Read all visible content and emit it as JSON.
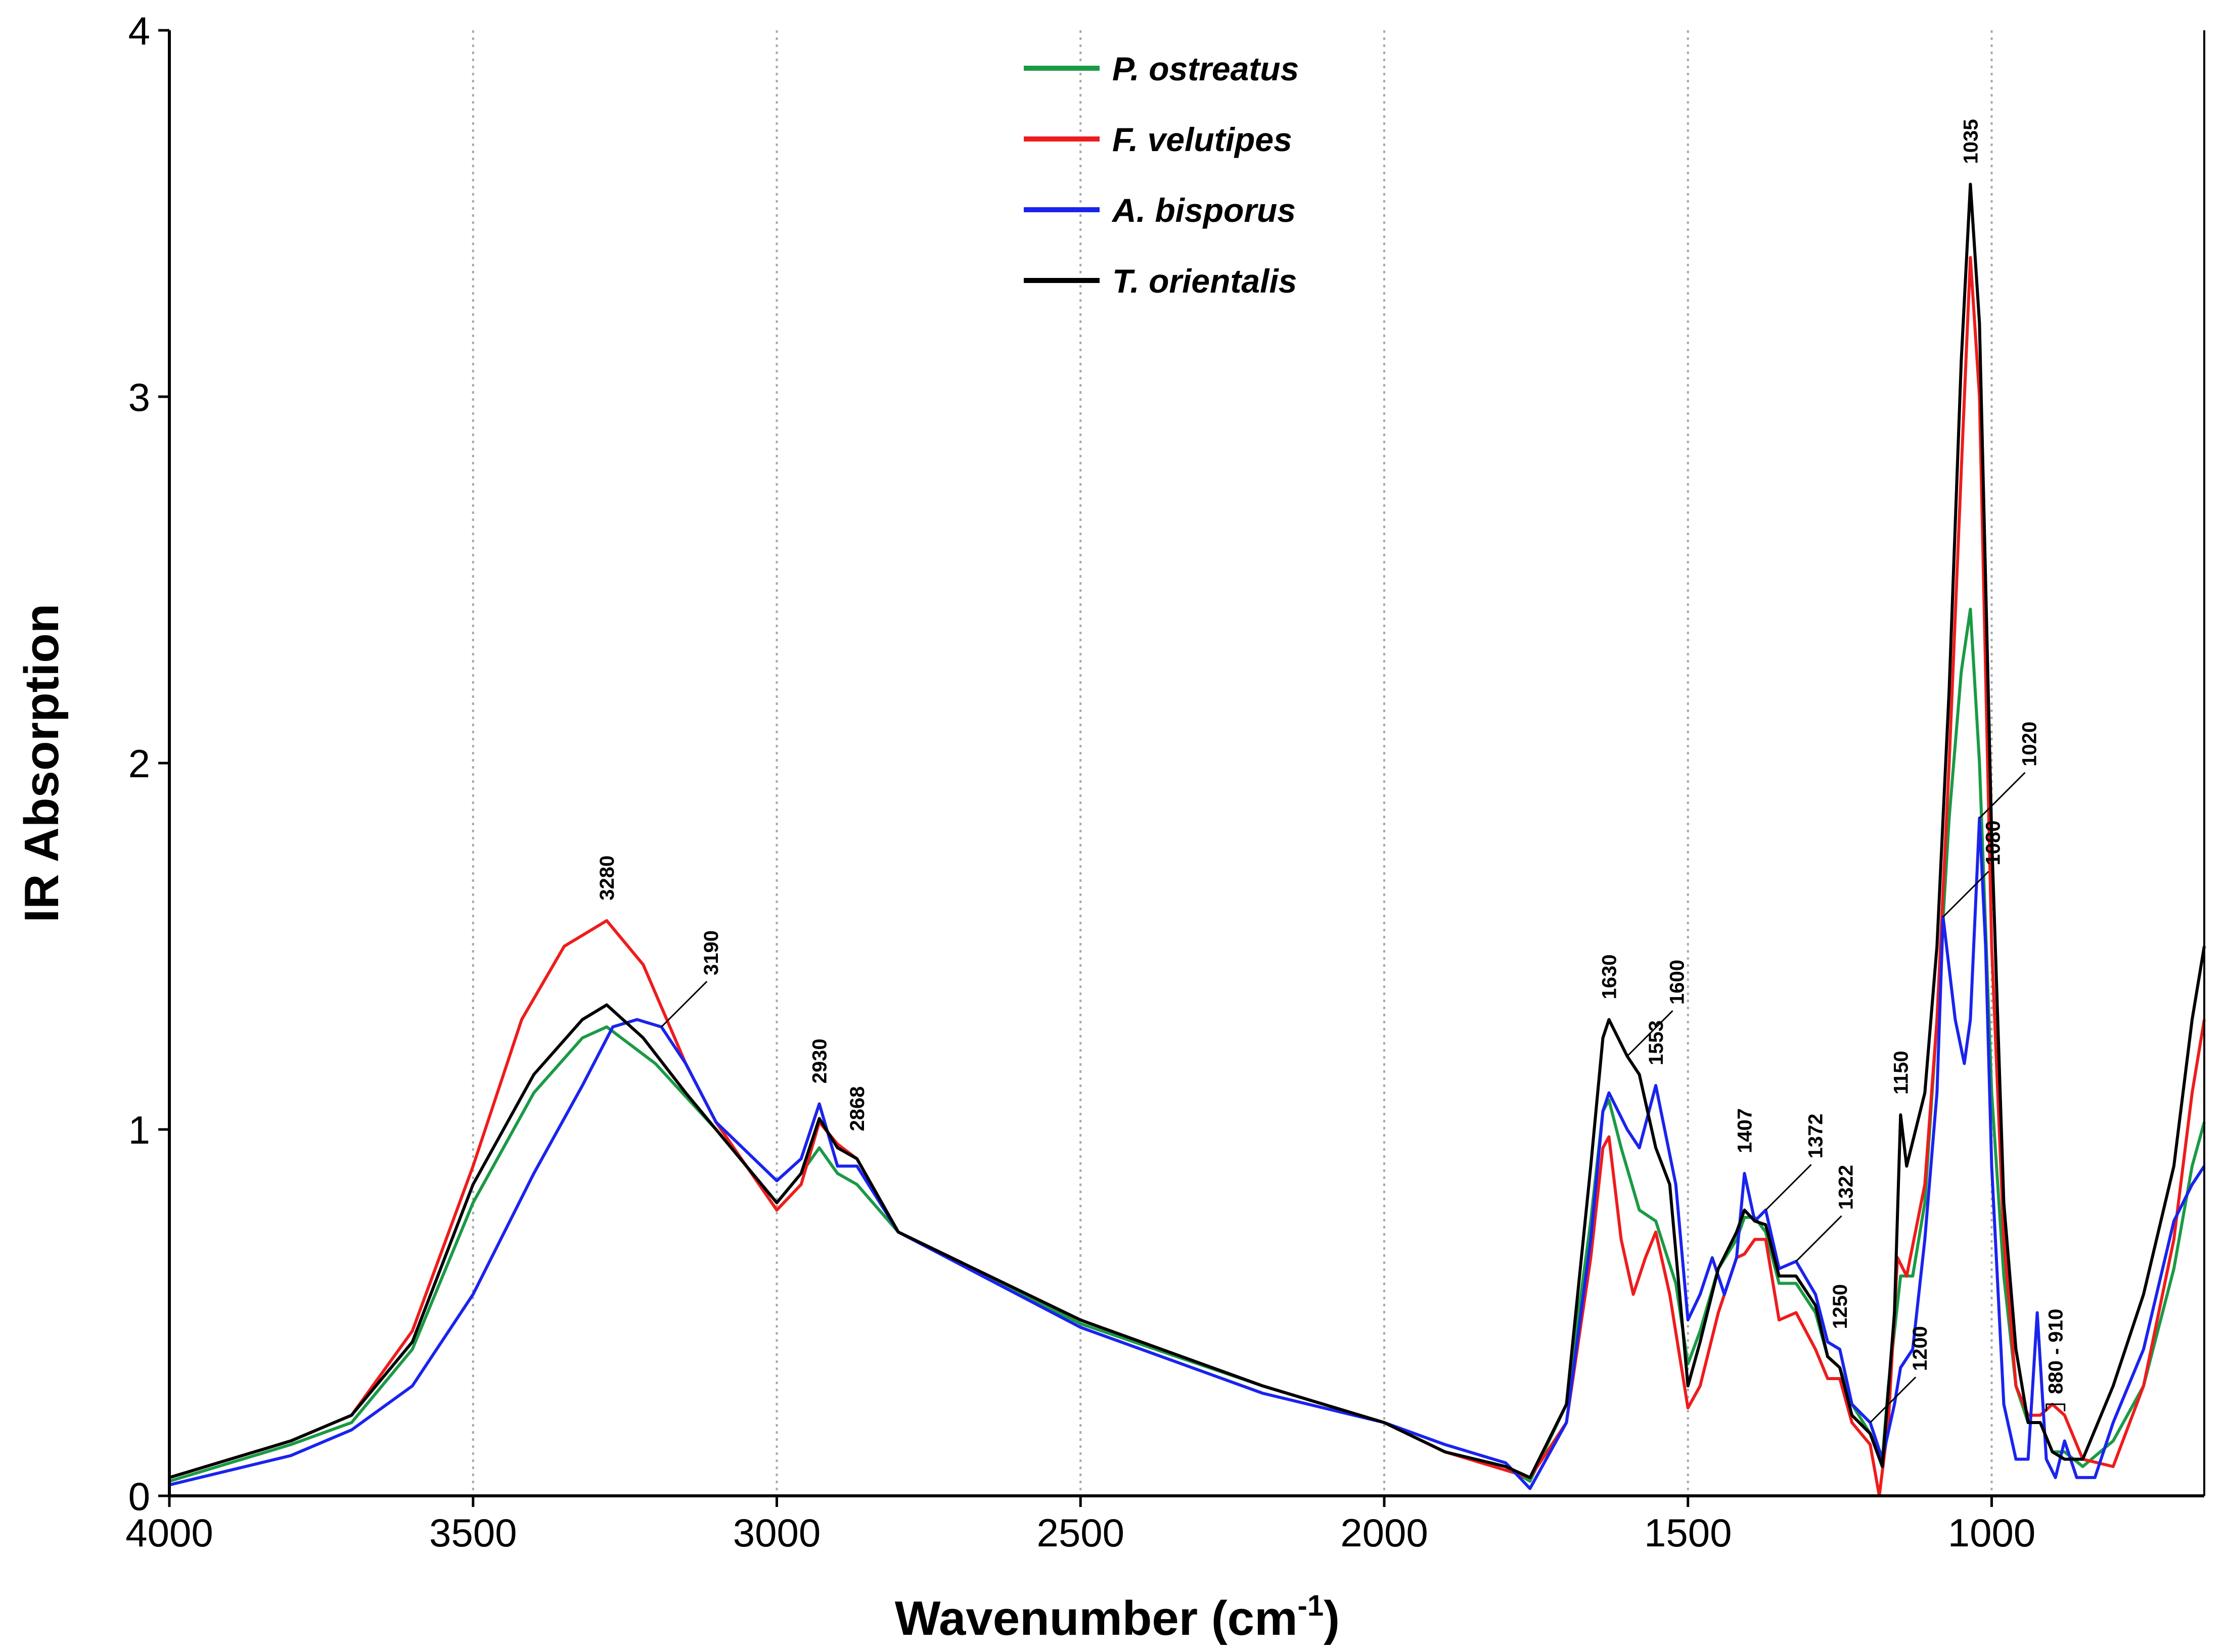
{
  "chart_data": {
    "type": "line",
    "xlabel": "Wavenumber (cm",
    "xlabel_sup": "-1",
    "xlabel_end": ")",
    "ylabel": "IR Absorption",
    "xlim": [
      4000,
      650
    ],
    "ylim": [
      0,
      4
    ],
    "x_ticks": [
      {
        "value": 4000,
        "label": "4000"
      },
      {
        "value": 3500,
        "label": "3500"
      },
      {
        "value": 3000,
        "label": "3000"
      },
      {
        "value": 2500,
        "label": "2500"
      },
      {
        "value": 2000,
        "label": "2000"
      },
      {
        "value": 1500,
        "label": "1500"
      },
      {
        "value": 1000,
        "label": "1000"
      }
    ],
    "y_ticks": [
      {
        "value": 0,
        "label": "0"
      },
      {
        "value": 1,
        "label": "1"
      },
      {
        "value": 2,
        "label": "2"
      },
      {
        "value": 3,
        "label": "3"
      },
      {
        "value": 4,
        "label": "4"
      }
    ],
    "vertical_gridlines": [
      3500,
      3000,
      2500,
      2000,
      1500,
      1000
    ],
    "legend_position": "top-center",
    "series": [
      {
        "name": "P. ostreatus",
        "color": "#1a9a45",
        "points": [
          [
            4000,
            0.04
          ],
          [
            3800,
            0.14
          ],
          [
            3700,
            0.2
          ],
          [
            3600,
            0.4
          ],
          [
            3500,
            0.8
          ],
          [
            3400,
            1.1
          ],
          [
            3320,
            1.25
          ],
          [
            3280,
            1.28
          ],
          [
            3200,
            1.18
          ],
          [
            3100,
            1.0
          ],
          [
            3000,
            0.8
          ],
          [
            2960,
            0.88
          ],
          [
            2930,
            0.95
          ],
          [
            2900,
            0.88
          ],
          [
            2868,
            0.85
          ],
          [
            2800,
            0.72
          ],
          [
            2500,
            0.47
          ],
          [
            2200,
            0.3
          ],
          [
            2000,
            0.2
          ],
          [
            1900,
            0.12
          ],
          [
            1800,
            0.08
          ],
          [
            1760,
            0.04
          ],
          [
            1700,
            0.25
          ],
          [
            1660,
            0.75
          ],
          [
            1640,
            1.05
          ],
          [
            1630,
            1.08
          ],
          [
            1610,
            0.95
          ],
          [
            1580,
            0.78
          ],
          [
            1553,
            0.75
          ],
          [
            1520,
            0.58
          ],
          [
            1500,
            0.36
          ],
          [
            1480,
            0.45
          ],
          [
            1450,
            0.62
          ],
          [
            1420,
            0.7
          ],
          [
            1407,
            0.76
          ],
          [
            1390,
            0.76
          ],
          [
            1372,
            0.72
          ],
          [
            1350,
            0.58
          ],
          [
            1322,
            0.58
          ],
          [
            1290,
            0.5
          ],
          [
            1270,
            0.38
          ],
          [
            1250,
            0.35
          ],
          [
            1230,
            0.25
          ],
          [
            1200,
            0.17
          ],
          [
            1180,
            0.1
          ],
          [
            1170,
            0.3
          ],
          [
            1150,
            0.6
          ],
          [
            1130,
            0.6
          ],
          [
            1110,
            0.8
          ],
          [
            1090,
            1.3
          ],
          [
            1070,
            1.85
          ],
          [
            1050,
            2.25
          ],
          [
            1035,
            2.42
          ],
          [
            1020,
            2.0
          ],
          [
            1000,
            1.1
          ],
          [
            980,
            0.6
          ],
          [
            960,
            0.3
          ],
          [
            940,
            0.2
          ],
          [
            920,
            0.2
          ],
          [
            900,
            0.12
          ],
          [
            880,
            0.12
          ],
          [
            850,
            0.08
          ],
          [
            800,
            0.15
          ],
          [
            750,
            0.3
          ],
          [
            700,
            0.62
          ],
          [
            670,
            0.9
          ],
          [
            650,
            1.02
          ]
        ]
      },
      {
        "name": "F. velutipes",
        "color": "#ee1c1c",
        "points": [
          [
            4000,
            0.05
          ],
          [
            3800,
            0.15
          ],
          [
            3700,
            0.22
          ],
          [
            3600,
            0.45
          ],
          [
            3500,
            0.9
          ],
          [
            3420,
            1.3
          ],
          [
            3350,
            1.5
          ],
          [
            3280,
            1.57
          ],
          [
            3220,
            1.45
          ],
          [
            3150,
            1.18
          ],
          [
            3100,
            1.02
          ],
          [
            3000,
            0.78
          ],
          [
            2960,
            0.85
          ],
          [
            2930,
            1.02
          ],
          [
            2900,
            0.96
          ],
          [
            2868,
            0.92
          ],
          [
            2800,
            0.72
          ],
          [
            2500,
            0.48
          ],
          [
            2200,
            0.3
          ],
          [
            2000,
            0.2
          ],
          [
            1900,
            0.12
          ],
          [
            1800,
            0.07
          ],
          [
            1760,
            0.05
          ],
          [
            1700,
            0.2
          ],
          [
            1660,
            0.65
          ],
          [
            1640,
            0.95
          ],
          [
            1630,
            0.98
          ],
          [
            1610,
            0.7
          ],
          [
            1590,
            0.55
          ],
          [
            1570,
            0.65
          ],
          [
            1553,
            0.72
          ],
          [
            1530,
            0.55
          ],
          [
            1500,
            0.24
          ],
          [
            1480,
            0.3
          ],
          [
            1450,
            0.5
          ],
          [
            1420,
            0.65
          ],
          [
            1407,
            0.66
          ],
          [
            1390,
            0.7
          ],
          [
            1372,
            0.7
          ],
          [
            1350,
            0.48
          ],
          [
            1322,
            0.5
          ],
          [
            1290,
            0.4
          ],
          [
            1270,
            0.32
          ],
          [
            1250,
            0.32
          ],
          [
            1230,
            0.2
          ],
          [
            1200,
            0.14
          ],
          [
            1185,
            0.0
          ],
          [
            1170,
            0.2
          ],
          [
            1155,
            0.65
          ],
          [
            1140,
            0.6
          ],
          [
            1110,
            0.85
          ],
          [
            1090,
            1.3
          ],
          [
            1070,
            2.0
          ],
          [
            1050,
            2.8
          ],
          [
            1035,
            3.38
          ],
          [
            1020,
            3.0
          ],
          [
            1000,
            1.5
          ],
          [
            980,
            0.7
          ],
          [
            960,
            0.3
          ],
          [
            940,
            0.22
          ],
          [
            920,
            0.22
          ],
          [
            900,
            0.25
          ],
          [
            880,
            0.22
          ],
          [
            850,
            0.1
          ],
          [
            800,
            0.08
          ],
          [
            750,
            0.3
          ],
          [
            700,
            0.7
          ],
          [
            670,
            1.1
          ],
          [
            650,
            1.3
          ]
        ]
      },
      {
        "name": "A. bisporus",
        "color": "#1a23ee",
        "points": [
          [
            4000,
            0.03
          ],
          [
            3800,
            0.11
          ],
          [
            3700,
            0.18
          ],
          [
            3600,
            0.3
          ],
          [
            3500,
            0.55
          ],
          [
            3400,
            0.88
          ],
          [
            3320,
            1.12
          ],
          [
            3270,
            1.28
          ],
          [
            3230,
            1.3
          ],
          [
            3190,
            1.28
          ],
          [
            3150,
            1.18
          ],
          [
            3100,
            1.02
          ],
          [
            3000,
            0.86
          ],
          [
            2960,
            0.92
          ],
          [
            2930,
            1.07
          ],
          [
            2900,
            0.9
          ],
          [
            2868,
            0.9
          ],
          [
            2800,
            0.72
          ],
          [
            2500,
            0.46
          ],
          [
            2200,
            0.28
          ],
          [
            2000,
            0.2
          ],
          [
            1900,
            0.14
          ],
          [
            1800,
            0.09
          ],
          [
            1760,
            0.02
          ],
          [
            1700,
            0.2
          ],
          [
            1660,
            0.7
          ],
          [
            1640,
            1.05
          ],
          [
            1630,
            1.1
          ],
          [
            1600,
            1.0
          ],
          [
            1580,
            0.95
          ],
          [
            1553,
            1.12
          ],
          [
            1520,
            0.85
          ],
          [
            1500,
            0.48
          ],
          [
            1480,
            0.55
          ],
          [
            1460,
            0.65
          ],
          [
            1440,
            0.55
          ],
          [
            1420,
            0.65
          ],
          [
            1407,
            0.88
          ],
          [
            1390,
            0.75
          ],
          [
            1372,
            0.78
          ],
          [
            1350,
            0.62
          ],
          [
            1322,
            0.64
          ],
          [
            1290,
            0.55
          ],
          [
            1270,
            0.42
          ],
          [
            1250,
            0.4
          ],
          [
            1230,
            0.25
          ],
          [
            1200,
            0.2
          ],
          [
            1180,
            0.1
          ],
          [
            1160,
            0.25
          ],
          [
            1150,
            0.35
          ],
          [
            1130,
            0.4
          ],
          [
            1110,
            0.7
          ],
          [
            1090,
            1.1
          ],
          [
            1080,
            1.58
          ],
          [
            1060,
            1.3
          ],
          [
            1045,
            1.18
          ],
          [
            1035,
            1.3
          ],
          [
            1020,
            1.85
          ],
          [
            1010,
            1.5
          ],
          [
            1000,
            0.9
          ],
          [
            980,
            0.25
          ],
          [
            960,
            0.1
          ],
          [
            940,
            0.1
          ],
          [
            925,
            0.5
          ],
          [
            910,
            0.1
          ],
          [
            895,
            0.05
          ],
          [
            880,
            0.15
          ],
          [
            860,
            0.05
          ],
          [
            830,
            0.05
          ],
          [
            800,
            0.2
          ],
          [
            750,
            0.4
          ],
          [
            700,
            0.75
          ],
          [
            670,
            0.85
          ],
          [
            650,
            0.9
          ]
        ]
      },
      {
        "name": "T. orientalis",
        "color": "#000000",
        "points": [
          [
            4000,
            0.05
          ],
          [
            3800,
            0.15
          ],
          [
            3700,
            0.22
          ],
          [
            3600,
            0.42
          ],
          [
            3500,
            0.85
          ],
          [
            3400,
            1.15
          ],
          [
            3320,
            1.3
          ],
          [
            3280,
            1.34
          ],
          [
            3220,
            1.25
          ],
          [
            3150,
            1.1
          ],
          [
            3100,
            1.0
          ],
          [
            3000,
            0.8
          ],
          [
            2960,
            0.88
          ],
          [
            2930,
            1.03
          ],
          [
            2900,
            0.95
          ],
          [
            2868,
            0.92
          ],
          [
            2800,
            0.72
          ],
          [
            2500,
            0.48
          ],
          [
            2200,
            0.3
          ],
          [
            2000,
            0.2
          ],
          [
            1900,
            0.12
          ],
          [
            1800,
            0.08
          ],
          [
            1760,
            0.05
          ],
          [
            1700,
            0.25
          ],
          [
            1660,
            0.9
          ],
          [
            1640,
            1.25
          ],
          [
            1630,
            1.3
          ],
          [
            1600,
            1.2
          ],
          [
            1580,
            1.15
          ],
          [
            1553,
            0.95
          ],
          [
            1530,
            0.85
          ],
          [
            1500,
            0.3
          ],
          [
            1480,
            0.42
          ],
          [
            1450,
            0.62
          ],
          [
            1420,
            0.72
          ],
          [
            1407,
            0.78
          ],
          [
            1390,
            0.75
          ],
          [
            1372,
            0.74
          ],
          [
            1350,
            0.6
          ],
          [
            1322,
            0.6
          ],
          [
            1290,
            0.52
          ],
          [
            1270,
            0.38
          ],
          [
            1250,
            0.35
          ],
          [
            1230,
            0.22
          ],
          [
            1200,
            0.17
          ],
          [
            1180,
            0.08
          ],
          [
            1160,
            0.5
          ],
          [
            1150,
            1.04
          ],
          [
            1140,
            0.9
          ],
          [
            1110,
            1.1
          ],
          [
            1090,
            1.5
          ],
          [
            1070,
            2.2
          ],
          [
            1050,
            3.1
          ],
          [
            1035,
            3.58
          ],
          [
            1020,
            3.2
          ],
          [
            1000,
            1.8
          ],
          [
            980,
            0.8
          ],
          [
            960,
            0.4
          ],
          [
            940,
            0.2
          ],
          [
            920,
            0.2
          ],
          [
            900,
            0.12
          ],
          [
            880,
            0.1
          ],
          [
            850,
            0.1
          ],
          [
            800,
            0.3
          ],
          [
            750,
            0.55
          ],
          [
            700,
            0.9
          ],
          [
            670,
            1.3
          ],
          [
            650,
            1.5
          ]
        ]
      }
    ],
    "annotations": [
      {
        "label": "3280",
        "x": 3280,
        "y": 1.57
      },
      {
        "label": "3190",
        "x": 3190,
        "y": 1.28,
        "leader": true
      },
      {
        "label": "2930",
        "x": 2930,
        "y": 1.07
      },
      {
        "label": "2868",
        "x": 2868,
        "y": 0.94
      },
      {
        "label": "1630",
        "x": 1630,
        "y": 1.3
      },
      {
        "label": "1600",
        "x": 1600,
        "y": 1.2,
        "leader": true
      },
      {
        "label": "1553",
        "x": 1553,
        "y": 1.12
      },
      {
        "label": "1407",
        "x": 1407,
        "y": 0.88
      },
      {
        "label": "1372",
        "x": 1372,
        "y": 0.78,
        "leader": true
      },
      {
        "label": "1322",
        "x": 1322,
        "y": 0.64,
        "leader": true
      },
      {
        "label": "1250",
        "x": 1250,
        "y": 0.4
      },
      {
        "label": "1200",
        "x": 1200,
        "y": 0.2,
        "leader": true
      },
      {
        "label": "1150",
        "x": 1150,
        "y": 1.04
      },
      {
        "label": "1080",
        "x": 1080,
        "y": 1.58,
        "leader": true
      },
      {
        "label": "1035",
        "x": 1035,
        "y": 3.58
      },
      {
        "label": "1020",
        "x": 1020,
        "y": 1.85,
        "leader": true
      },
      {
        "label": "880 - 910",
        "x": 895,
        "y": 0.25,
        "bracket": [
          910,
          880
        ]
      }
    ]
  }
}
